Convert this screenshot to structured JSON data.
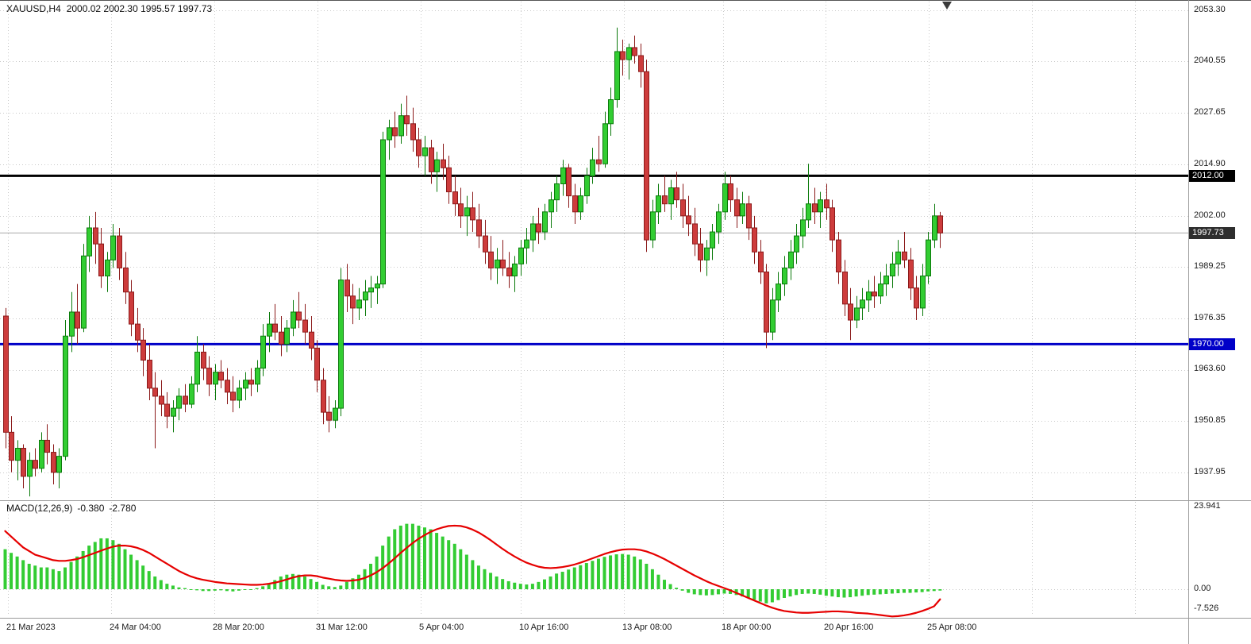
{
  "header": {
    "symbol_timeframe": "XAUUSD,H4",
    "ohlc_values": "2000.02 2002.30 1995.57 1997.73"
  },
  "colors": {
    "background": "#FFFFFF",
    "grid": "#C9C9C9",
    "bull": "#32CD32",
    "bull_border": "#0B7A0B",
    "bear": "#CD3C3C",
    "bear_border": "#8B1A1A",
    "macd_histogram": "#33CC33",
    "macd_signal": "#E60000",
    "resistance_line": "#000000",
    "support_line": "#0000C8",
    "current_price_line": "#AAAAAA",
    "separator": "#9A9A9A"
  },
  "chart_data": {
    "type": "candlestick",
    "symbol": "XAUUSD",
    "timeframe": "H4",
    "current_bar": {
      "open": 2000.02,
      "high": 2002.3,
      "low": 1995.57,
      "close": 1997.73
    },
    "price_axis_ticks": [
      "2053.30",
      "2040.55",
      "2027.65",
      "2014.90",
      "2002.00",
      "1989.25",
      "1976.35",
      "1963.60",
      "1950.85",
      "1937.95"
    ],
    "price_axis_top_value": 2053.3,
    "price_axis_tick_step": 12.75,
    "time_axis_labels": [
      "21 Mar 2023",
      "24 Mar 04:00",
      "28 Mar 20:00",
      "31 Mar 12:00",
      "5 Apr 04:00",
      "10 Apr 16:00",
      "13 Apr 08:00",
      "18 Apr 00:00",
      "20 Apr 16:00",
      "25 Apr 08:00"
    ],
    "horizontal_levels": [
      {
        "price": 2012.0,
        "label": "2012.00",
        "color": "#000000",
        "width": 3
      },
      {
        "price": 1970.0,
        "label": "1970.00",
        "color": "#0000C8",
        "width": 3
      }
    ],
    "current_price_line": {
      "price": 1997.73,
      "label": "1997.73"
    },
    "candles": [
      [
        1977,
        1979,
        1944,
        1948
      ],
      [
        1948,
        1952,
        1938,
        1941
      ],
      [
        1941,
        1946,
        1936,
        1944
      ],
      [
        1944,
        1945,
        1934,
        1937
      ],
      [
        1937,
        1943,
        1932,
        1941
      ],
      [
        1941,
        1944,
        1937,
        1939
      ],
      [
        1939,
        1948,
        1938,
        1946
      ],
      [
        1946,
        1950,
        1940,
        1943
      ],
      [
        1943,
        1945,
        1935,
        1938
      ],
      [
        1938,
        1944,
        1934,
        1942
      ],
      [
        1942,
        1976,
        1941,
        1972
      ],
      [
        1972,
        1983,
        1968,
        1978
      ],
      [
        1978,
        1985,
        1970,
        1974
      ],
      [
        1974,
        1995,
        1973,
        1992
      ],
      [
        1992,
        2002,
        1988,
        1999
      ],
      [
        1999,
        2003,
        1990,
        1995
      ],
      [
        1995,
        1999,
        1984,
        1987
      ],
      [
        1987,
        1993,
        1983,
        1991
      ],
      [
        1991,
        2000,
        1989,
        1997
      ],
      [
        1997,
        1999,
        1986,
        1989
      ],
      [
        1989,
        1993,
        1980,
        1983
      ],
      [
        1983,
        1986,
        1972,
        1975
      ],
      [
        1975,
        1979,
        1968,
        1971
      ],
      [
        1971,
        1974,
        1962,
        1966
      ],
      [
        1966,
        1970,
        1956,
        1959
      ],
      [
        1959,
        1963,
        1944,
        1957
      ],
      [
        1957,
        1961,
        1952,
        1955
      ],
      [
        1955,
        1958,
        1949,
        1952
      ],
      [
        1952,
        1956,
        1948,
        1954
      ],
      [
        1954,
        1959,
        1951,
        1957
      ],
      [
        1957,
        1960,
        1953,
        1955
      ],
      [
        1955,
        1962,
        1954,
        1960
      ],
      [
        1960,
        1972,
        1958,
        1968
      ],
      [
        1968,
        1970,
        1961,
        1964
      ],
      [
        1964,
        1967,
        1957,
        1960
      ],
      [
        1960,
        1965,
        1956,
        1963
      ],
      [
        1963,
        1966,
        1959,
        1961
      ],
      [
        1961,
        1964,
        1955,
        1958
      ],
      [
        1958,
        1962,
        1953,
        1956
      ],
      [
        1956,
        1961,
        1954,
        1959
      ],
      [
        1959,
        1963,
        1956,
        1961
      ],
      [
        1961,
        1964,
        1957,
        1960
      ],
      [
        1960,
        1966,
        1958,
        1964
      ],
      [
        1964,
        1975,
        1962,
        1972
      ],
      [
        1972,
        1978,
        1968,
        1975
      ],
      [
        1975,
        1980,
        1971,
        1973
      ],
      [
        1973,
        1977,
        1967,
        1970
      ],
      [
        1970,
        1976,
        1968,
        1974
      ],
      [
        1974,
        1981,
        1972,
        1978
      ],
      [
        1978,
        1983,
        1974,
        1976
      ],
      [
        1976,
        1980,
        1970,
        1973
      ],
      [
        1973,
        1977,
        1966,
        1969
      ],
      [
        1969,
        1971,
        1958,
        1961
      ],
      [
        1961,
        1964,
        1950,
        1953
      ],
      [
        1953,
        1957,
        1948,
        1951
      ],
      [
        1951,
        1956,
        1949,
        1954
      ],
      [
        1954,
        1989,
        1952,
        1986
      ],
      [
        1986,
        1990,
        1978,
        1982
      ],
      [
        1982,
        1985,
        1975,
        1979
      ],
      [
        1979,
        1984,
        1976,
        1981
      ],
      [
        1981,
        1986,
        1977,
        1983
      ],
      [
        1983,
        1987,
        1979,
        1984
      ],
      [
        1984,
        1987,
        1980,
        1985
      ],
      [
        1985,
        2023,
        1984,
        2021
      ],
      [
        2021,
        2026,
        2016,
        2024
      ],
      [
        2024,
        2028,
        2019,
        2022
      ],
      [
        2022,
        2030,
        2020,
        2027
      ],
      [
        2027,
        2032,
        2022,
        2025
      ],
      [
        2025,
        2029,
        2018,
        2021
      ],
      [
        2021,
        2024,
        2014,
        2017
      ],
      [
        2017,
        2022,
        2012,
        2019
      ],
      [
        2019,
        2021,
        2010,
        2013
      ],
      [
        2013,
        2018,
        2008,
        2016
      ],
      [
        2016,
        2020,
        2011,
        2014
      ],
      [
        2014,
        2017,
        2005,
        2008
      ],
      [
        2008,
        2012,
        2002,
        2005
      ],
      [
        2005,
        2009,
        1999,
        2002
      ],
      [
        2002,
        2007,
        1997,
        2004
      ],
      [
        2004,
        2008,
        1998,
        2001
      ],
      [
        2001,
        2005,
        1994,
        1997
      ],
      [
        1997,
        2001,
        1990,
        1993
      ],
      [
        1993,
        1997,
        1986,
        1989
      ],
      [
        1989,
        1994,
        1985,
        1991
      ],
      [
        1991,
        1996,
        1987,
        1989
      ],
      [
        1989,
        1993,
        1984,
        1987
      ],
      [
        1987,
        1992,
        1983,
        1990
      ],
      [
        1990,
        1996,
        1987,
        1994
      ],
      [
        1994,
        1999,
        1990,
        1996
      ],
      [
        1996,
        2002,
        1993,
        2000
      ],
      [
        2000,
        2004,
        1995,
        1998
      ],
      [
        1998,
        2005,
        1996,
        2003
      ],
      [
        2003,
        2008,
        1999,
        2006
      ],
      [
        2006,
        2012,
        2003,
        2010
      ],
      [
        2010,
        2016,
        2007,
        2014
      ],
      [
        2014,
        2015,
        2004,
        2007
      ],
      [
        2007,
        2010,
        2000,
        2003
      ],
      [
        2003,
        2009,
        2001,
        2007
      ],
      [
        2007,
        2014,
        2005,
        2012
      ],
      [
        2012,
        2019,
        2010,
        2016
      ],
      [
        2016,
        2022,
        2013,
        2015
      ],
      [
        2015,
        2028,
        2014,
        2025
      ],
      [
        2025,
        2034,
        2022,
        2031
      ],
      [
        2031,
        2049,
        2029,
        2043
      ],
      [
        2043,
        2046,
        2037,
        2041
      ],
      [
        2041,
        2045,
        2036,
        2044
      ],
      [
        2044,
        2047,
        2040,
        2042
      ],
      [
        2042,
        2045,
        2034,
        2038
      ],
      [
        2038,
        2041,
        1993,
        1996
      ],
      [
        1996,
        2006,
        1994,
        2003
      ],
      [
        2003,
        2010,
        2000,
        2007
      ],
      [
        2007,
        2012,
        2003,
        2005
      ],
      [
        2005,
        2011,
        2001,
        2009
      ],
      [
        2009,
        2013,
        2004,
        2006
      ],
      [
        2006,
        2010,
        1999,
        2002
      ],
      [
        2002,
        2007,
        1997,
        2000
      ],
      [
        2000,
        2004,
        1992,
        1995
      ],
      [
        1995,
        1999,
        1988,
        1991
      ],
      [
        1991,
        1996,
        1987,
        1994
      ],
      [
        1994,
        2000,
        1991,
        1998
      ],
      [
        1998,
        2005,
        1995,
        2003
      ],
      [
        2003,
        2013,
        2001,
        2010
      ],
      [
        2010,
        2012,
        2003,
        2006
      ],
      [
        2006,
        2009,
        1999,
        2002
      ],
      [
        2002,
        2008,
        2000,
        2005
      ],
      [
        2005,
        2007,
        1996,
        1999
      ],
      [
        1999,
        2002,
        1990,
        1993
      ],
      [
        1993,
        1996,
        1985,
        1988
      ],
      [
        1988,
        1990,
        1969,
        1973
      ],
      [
        1973,
        1984,
        1971,
        1981
      ],
      [
        1981,
        1988,
        1978,
        1985
      ],
      [
        1985,
        1992,
        1982,
        1989
      ],
      [
        1989,
        1996,
        1986,
        1993
      ],
      [
        1993,
        2000,
        1990,
        1997
      ],
      [
        1997,
        2004,
        1994,
        2001
      ],
      [
        2001,
        2015,
        1999,
        2005
      ],
      [
        2005,
        2009,
        2000,
        2003
      ],
      [
        2003,
        2008,
        1999,
        2006
      ],
      [
        2006,
        2010,
        2001,
        2004
      ],
      [
        2004,
        2006,
        1993,
        1996
      ],
      [
        1996,
        1998,
        1985,
        1988
      ],
      [
        1988,
        1991,
        1977,
        1980
      ],
      [
        1980,
        1984,
        1971,
        1976
      ],
      [
        1976,
        1982,
        1974,
        1979
      ],
      [
        1979,
        1984,
        1976,
        1981
      ],
      [
        1981,
        1986,
        1978,
        1983
      ],
      [
        1983,
        1987,
        1979,
        1982
      ],
      [
        1982,
        1988,
        1980,
        1985
      ],
      [
        1985,
        1990,
        1982,
        1987
      ],
      [
        1987,
        1993,
        1984,
        1990
      ],
      [
        1990,
        1996,
        1987,
        1993
      ],
      [
        1993,
        1998,
        1989,
        1991
      ],
      [
        1991,
        1994,
        1981,
        1984
      ],
      [
        1984,
        1987,
        1976,
        1979
      ],
      [
        1979,
        1990,
        1977,
        1987
      ],
      [
        1987,
        1998,
        1985,
        1996
      ],
      [
        1996,
        2005,
        1994,
        2002
      ],
      [
        2002,
        2003,
        1994,
        1997.73
      ]
    ],
    "macd": {
      "title": "MACD(12,26,9)",
      "params": [
        12,
        26,
        9
      ],
      "main_value_label": "-0.380",
      "signal_value_label": "-2.780",
      "axis_ticks": [
        "23.941",
        "0.00",
        "-7.526"
      ],
      "axis_max": 23.941,
      "axis_min": -7.526,
      "histogram": [
        11,
        10,
        9,
        8,
        7,
        6.5,
        6,
        6,
        5.5,
        5,
        6,
        7.5,
        9,
        10.5,
        12,
        13,
        14,
        14,
        13.5,
        12.5,
        11,
        9.5,
        8,
        6.5,
        5,
        3.5,
        2.5,
        1.5,
        1,
        0.5,
        0.3,
        0,
        -0.3,
        -0.5,
        -0.5,
        -0.4,
        -0.3,
        -0.5,
        -0.6,
        -0.4,
        -0.2,
        0,
        0.3,
        0.8,
        1.5,
        2.5,
        3.5,
        4,
        4.2,
        4,
        3.5,
        2.8,
        2,
        1.2,
        0.8,
        0.6,
        1,
        2,
        3,
        4,
        5.5,
        7,
        9,
        12,
        14.5,
        16.5,
        17.5,
        18,
        18,
        17.5,
        17,
        16.5,
        15.5,
        14.5,
        13.5,
        12.5,
        11,
        9.5,
        8,
        6.5,
        5.5,
        4.5,
        3.5,
        2.8,
        2.2,
        1.8,
        1.5,
        1.3,
        1.5,
        2,
        2.7,
        3.5,
        4.3,
        4.8,
        5.4,
        6,
        6.6,
        7.2,
        7.8,
        8.4,
        8.9,
        9.3,
        9.6,
        9.7,
        9.5,
        9,
        8.2,
        7,
        5.5,
        4,
        2.6,
        1.4,
        0.4,
        -0.4,
        -1,
        -1.4,
        -1.6,
        -1.7,
        -1.6,
        -1.4,
        -1.2,
        -1.3,
        -1.6,
        -2,
        -2.4,
        -2.9,
        -3.4,
        -3.9,
        -3.6,
        -3,
        -2.4,
        -2,
        -1.6,
        -1.3,
        -1.2,
        -1.3,
        -1.5,
        -1.8,
        -2,
        -2.2,
        -2.3,
        -2.2,
        -2,
        -1.8,
        -1.6,
        -1.5,
        -1.4,
        -1.3,
        -1.2,
        -1.1,
        -1,
        -1,
        -0.9,
        -0.8,
        -0.6,
        -0.5,
        -0.38
      ],
      "signal": [
        16,
        14.5,
        13,
        11.5,
        10.5,
        9.5,
        9,
        8.5,
        8,
        7.8,
        7.8,
        8,
        8.3,
        8.8,
        9.4,
        10,
        10.6,
        11.2,
        11.7,
        12,
        12,
        11.8,
        11.4,
        10.8,
        10,
        9,
        8,
        7,
        6,
        5,
        4.2,
        3.5,
        3,
        2.6,
        2.3,
        2,
        1.8,
        1.6,
        1.5,
        1.4,
        1.3,
        1.2,
        1.2,
        1.3,
        1.5,
        1.8,
        2.2,
        2.7,
        3.2,
        3.6,
        3.8,
        3.8,
        3.6,
        3.2,
        2.9,
        2.6,
        2.4,
        2.3,
        2.4,
        2.6,
        3.1,
        3.8,
        4.7,
        5.8,
        7.1,
        8.5,
        10,
        11.4,
        12.7,
        13.9,
        14.9,
        15.8,
        16.5,
        17,
        17.4,
        17.5,
        17.4,
        17,
        16.4,
        15.6,
        14.6,
        13.5,
        12.3,
        11.1,
        10,
        9,
        8.1,
        7.3,
        6.7,
        6.2,
        5.9,
        5.8,
        5.9,
        6.1,
        6.4,
        6.8,
        7.3,
        7.9,
        8.5,
        9.1,
        9.7,
        10.2,
        10.6,
        10.9,
        11,
        11,
        10.8,
        10.4,
        9.8,
        9.1,
        8.3,
        7.4,
        6.5,
        5.6,
        4.7,
        3.8,
        3,
        2.2,
        1.5,
        0.9,
        0.3,
        -0.3,
        -1,
        -1.7,
        -2.4,
        -3.1,
        -3.8,
        -4.5,
        -5.1,
        -5.6,
        -6,
        -6.2,
        -6.4,
        -6.5,
        -6.5,
        -6.4,
        -6.3,
        -6.2,
        -6.1,
        -6.1,
        -6.2,
        -6.3,
        -6.5,
        -6.6,
        -6.7,
        -6.9,
        -7.1,
        -7.3,
        -7.5,
        -7.4,
        -7.2,
        -6.9,
        -6.5,
        -6,
        -5.4,
        -4.7,
        -2.78
      ]
    }
  }
}
